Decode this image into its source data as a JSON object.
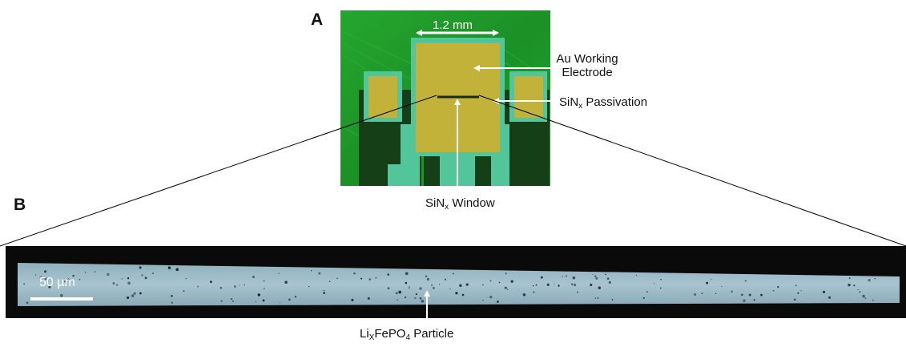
{
  "panels": {
    "a": "A",
    "b": "B"
  },
  "photo_a": {
    "width_label": "1.2 mm",
    "colors": {
      "substrate": "#1f9a2a",
      "electrode": "#c2b23a",
      "passivation": "#52c59a",
      "dark": "#123b14"
    }
  },
  "labels": {
    "working_electrode_line1": "Au Working",
    "working_electrode_line2": "Electrode",
    "passivation_main": "SiN",
    "passivation_sub": "x",
    "passivation_rest": " Passivation",
    "window_main": "SiN",
    "window_sub": "x",
    "window_rest": " Window",
    "particle_li": "Li",
    "particle_sub1": "X",
    "particle_mid": "FePO",
    "particle_sub2": "4",
    "particle_rest": " Particle"
  },
  "micrograph_b": {
    "scale_bar_label": "50 µm",
    "colors": {
      "background": "#0a0a0a",
      "channel": "#a2bfcc",
      "particle": "#1b2a33"
    }
  }
}
